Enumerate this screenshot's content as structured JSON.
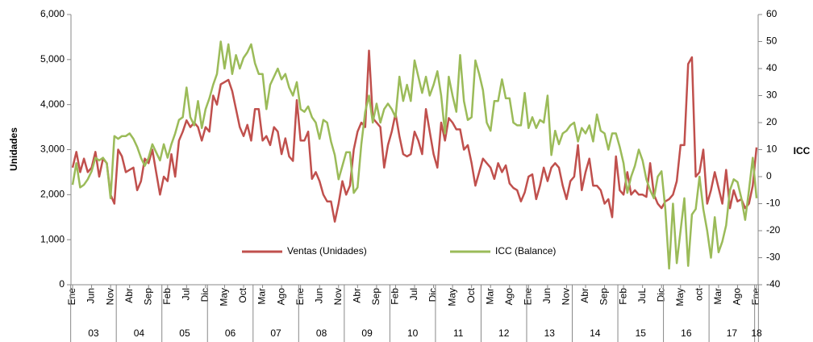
{
  "chart_data": {
    "type": "line",
    "y_label": "Unidades",
    "y2_label": "ICC",
    "categories": [
      "Ene",
      null,
      null,
      null,
      null,
      "Jun",
      null,
      null,
      null,
      null,
      "Nov",
      null,
      null,
      null,
      null,
      "Abr",
      null,
      null,
      null,
      null,
      "Sep",
      null,
      null,
      null,
      null,
      "Feb",
      null,
      null,
      null,
      null,
      "Jul",
      null,
      null,
      null,
      null,
      "Dic",
      null,
      null,
      null,
      null,
      "May",
      null,
      null,
      null,
      null,
      "Oct",
      null,
      null,
      null,
      null,
      "Mar",
      null,
      null,
      null,
      null,
      "Ago",
      null,
      null,
      null,
      null,
      "Ene",
      null,
      null,
      null,
      null,
      "Jun",
      null,
      null,
      null,
      null,
      "Nov",
      null,
      null,
      null,
      null,
      "Abr",
      null,
      null,
      null,
      null,
      "Sep",
      null,
      null,
      null,
      null,
      "Feb",
      null,
      null,
      null,
      null,
      "Jul",
      null,
      null,
      null,
      null,
      "Dic",
      null,
      null,
      null,
      null,
      "May",
      null,
      null,
      null,
      null,
      "Oct",
      null,
      null,
      null,
      null,
      "Mar",
      null,
      null,
      null,
      null,
      "Ago",
      null,
      null,
      null,
      null,
      "Ene",
      null,
      null,
      null,
      null,
      "Jun",
      null,
      null,
      null,
      null,
      "Nov",
      null,
      null,
      null,
      null,
      "Abr",
      null,
      null,
      null,
      null,
      "Sep",
      null,
      null,
      null,
      null,
      "Feb",
      null,
      null,
      null,
      null,
      "JuL",
      null,
      null,
      null,
      null,
      "Dic",
      null,
      null,
      null,
      null,
      "May",
      null,
      null,
      null,
      null,
      "oct",
      null,
      null,
      null,
      null,
      "Mar",
      null,
      null,
      null,
      null,
      "Ago",
      null,
      null,
      null,
      null,
      "Ene"
    ],
    "years": [
      "03",
      "04",
      "05",
      "06",
      "07",
      "08",
      "09",
      "10",
      "11",
      "12",
      "13",
      "14",
      "15",
      "16",
      "17",
      "18"
    ],
    "series": [
      {
        "name": "Ventas (Unidades)",
        "color": "#c0504d",
        "values": [
          2600,
          2950,
          2500,
          2800,
          2500,
          2600,
          2950,
          2400,
          2800,
          2700,
          2000,
          1800,
          3000,
          2850,
          2500,
          2550,
          2600,
          2100,
          2300,
          2800,
          2700,
          3000,
          2500,
          2000,
          2400,
          2300,
          2900,
          2400,
          3200,
          3400,
          3650,
          3500,
          3600,
          3500,
          3200,
          3500,
          3400,
          4200,
          4000,
          4450,
          4500,
          4550,
          4300,
          3900,
          3500,
          3300,
          3550,
          3200,
          3900,
          3900,
          3200,
          3300,
          3100,
          3500,
          3400,
          2900,
          3250,
          2850,
          2750,
          4100,
          3200,
          3200,
          3400,
          2350,
          2500,
          2300,
          2000,
          1850,
          1850,
          1400,
          1800,
          2300,
          2000,
          2200,
          3000,
          3400,
          3600,
          3500,
          5200,
          3700,
          3600,
          3500,
          2600,
          3100,
          3400,
          3800,
          3300,
          2900,
          2850,
          2900,
          3400,
          3200,
          2900,
          3900,
          3400,
          2900,
          2600,
          3600,
          3200,
          3700,
          3600,
          3450,
          3450,
          3000,
          3100,
          2700,
          2200,
          2500,
          2800,
          2700,
          2600,
          2350,
          2700,
          2500,
          2650,
          2250,
          2150,
          2100,
          1850,
          2050,
          2400,
          2450,
          1900,
          2200,
          2600,
          2300,
          2600,
          2700,
          2600,
          2200,
          1900,
          2300,
          2400,
          3100,
          2100,
          2500,
          2800,
          2200,
          2200,
          2100,
          1800,
          1900,
          1500,
          2850,
          2100,
          2000,
          2500,
          2000,
          2100,
          2000,
          2000,
          1950,
          2700,
          2000,
          1800,
          1700,
          1850,
          1900,
          2000,
          2300,
          3100,
          3100,
          4900,
          5050,
          2400,
          2500,
          3000,
          1800,
          2100,
          2500,
          2150,
          1800,
          2550,
          1700,
          2100,
          1850,
          1900,
          1700,
          1800,
          2200,
          3050
        ]
      },
      {
        "name": "ICC (Balance)",
        "color": "#9bbb59",
        "axis": "y2",
        "values": [
          -3,
          5,
          -4,
          -3,
          -1,
          2,
          7,
          6,
          7,
          5,
          -8,
          15,
          14,
          15,
          15,
          16,
          14,
          11,
          7,
          4,
          7,
          12,
          9,
          6,
          12,
          7,
          12,
          16,
          21,
          22,
          33,
          22,
          19,
          28,
          18,
          25,
          29,
          34,
          38,
          50,
          40,
          49,
          38,
          45,
          40,
          44,
          46,
          49,
          42,
          38,
          38,
          25,
          34,
          37,
          40,
          36,
          38,
          33,
          30,
          35,
          25,
          24,
          26,
          22,
          20,
          14,
          21,
          20,
          13,
          8,
          -1,
          4,
          9,
          9,
          -6,
          -4,
          12,
          24,
          30,
          20,
          27,
          20,
          25,
          27,
          25,
          22,
          37,
          28,
          34,
          28,
          43,
          37,
          31,
          37,
          30,
          34,
          39,
          30,
          16,
          37,
          30,
          24,
          45,
          28,
          21,
          22,
          43,
          38,
          32,
          20,
          17,
          28,
          28,
          36,
          29,
          29,
          20,
          19,
          19,
          31,
          18,
          22,
          18,
          21,
          20,
          30,
          8,
          17,
          12,
          16,
          17,
          19,
          20,
          13,
          18,
          16,
          19,
          13,
          23,
          17,
          16,
          10,
          16,
          16,
          11,
          5,
          -6,
          0,
          4,
          10,
          6,
          -1,
          -5,
          -8,
          0,
          2,
          -12,
          -34,
          -10,
          -32,
          -20,
          -8,
          -33,
          -14,
          -12,
          0,
          -12,
          -20,
          -30,
          -15,
          -28,
          -24,
          -18,
          -5,
          -1,
          -2,
          -8,
          -16,
          -5,
          7,
          -8
        ]
      }
    ],
    "ylim": [
      0,
      6000
    ],
    "yticks": [
      0,
      {
        "value": 1000,
        "label": "1,000"
      },
      {
        "value": 2000,
        "label": "2,000"
      },
      {
        "value": 3000,
        "label": "3,000"
      },
      {
        "value": 4000,
        "label": "4,000"
      },
      {
        "value": 5000,
        "label": "5,000"
      },
      {
        "value": 6000,
        "label": "6,000"
      }
    ],
    "y2lim": [
      -40,
      60
    ],
    "y2ticks": [
      -40,
      -30,
      -20,
      -10,
      0,
      10,
      20,
      30,
      40,
      50,
      60
    ],
    "grid": false,
    "legend": "bottom"
  }
}
